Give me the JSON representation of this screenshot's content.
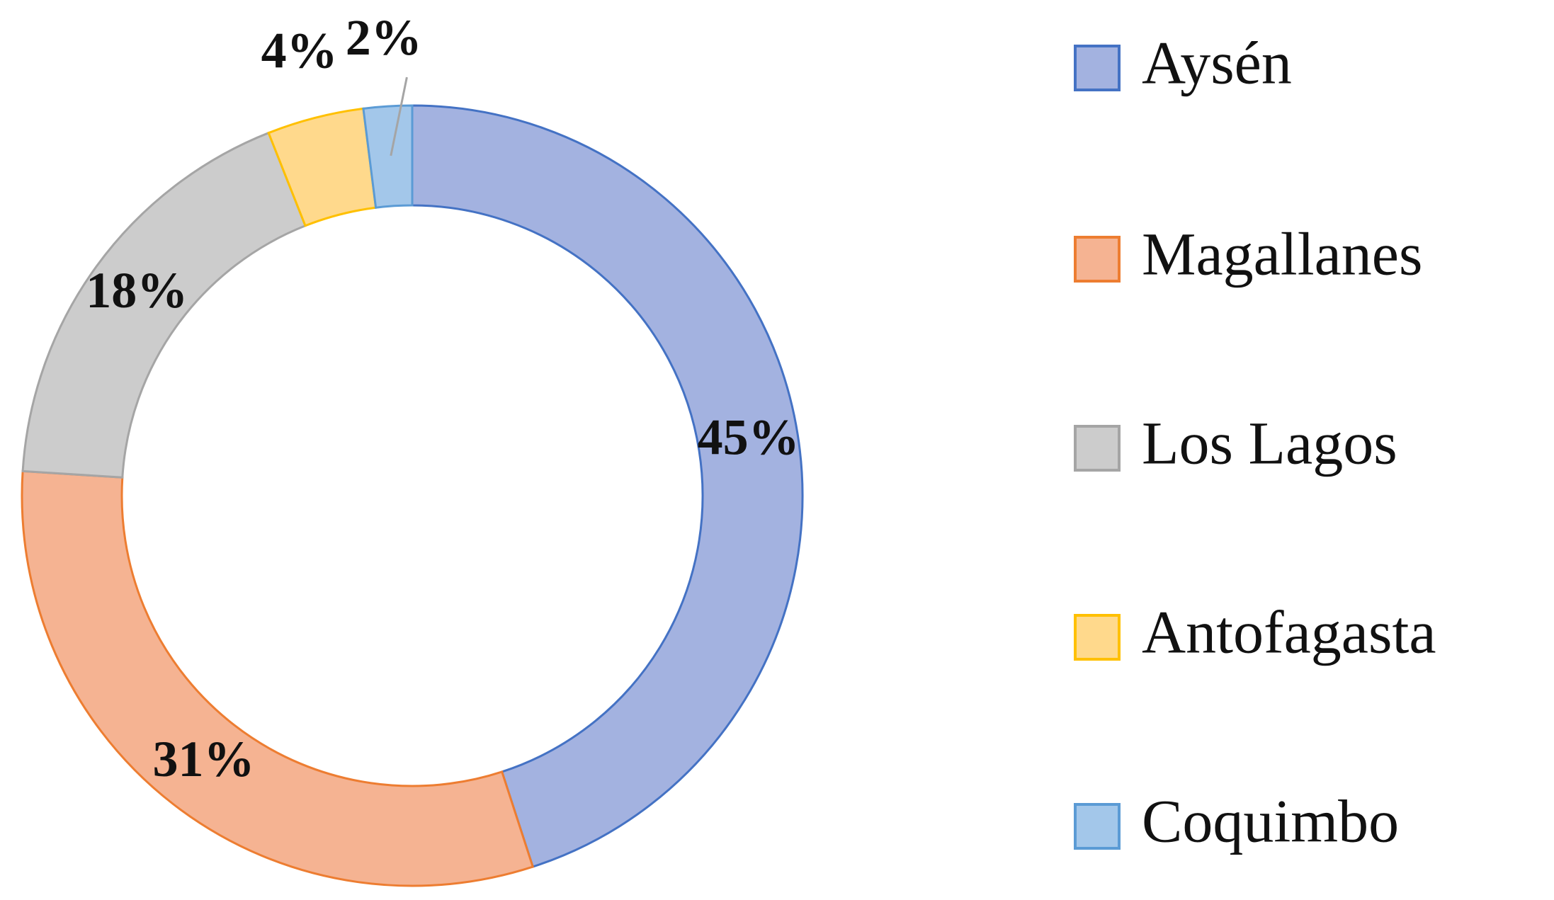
{
  "chart_data": {
    "type": "donut",
    "categories": [
      "Aysén",
      "Magallanes",
      "Los Lagos",
      "Antofagasta",
      "Coquimbo"
    ],
    "values": [
      45,
      31,
      18,
      4,
      2
    ],
    "value_labels": [
      "45%",
      "31%",
      "18%",
      "4%",
      "2%"
    ],
    "colors": [
      "#a3b2e0",
      "#f5b392",
      "#cccccc",
      "#ffd98c",
      "#a3c7ea"
    ],
    "stroke_colors": [
      "#4472c4",
      "#ed7d31",
      "#a5a5a5",
      "#ffc000",
      "#5b9bd5"
    ],
    "legend": "right"
  }
}
